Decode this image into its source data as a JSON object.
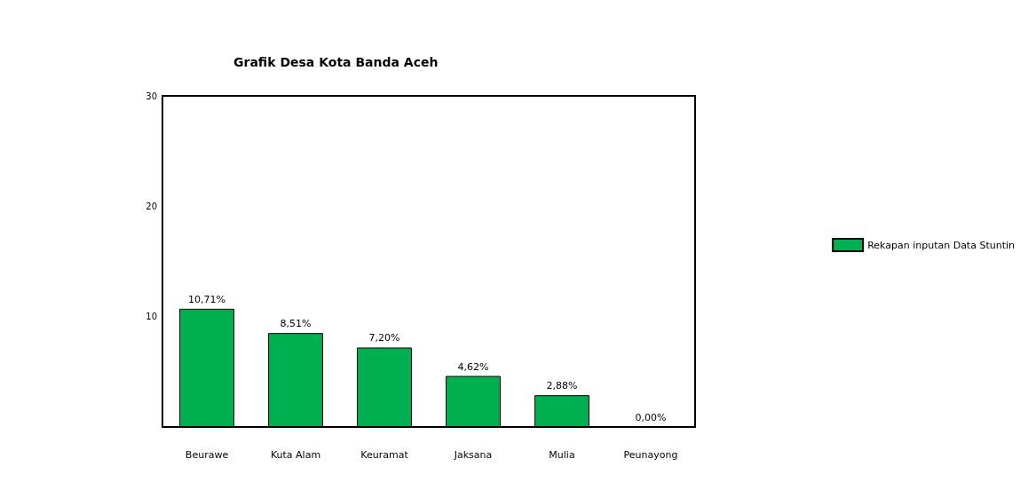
{
  "chart_data": {
    "type": "bar",
    "title": "Grafik Desa Kota Banda Aceh",
    "categories": [
      "Beurawe",
      "Kuta Alam",
      "Keuramat",
      "Jaksana",
      "Mulia",
      "Peunayong"
    ],
    "series": [
      {
        "name": "Rekapan inputan Data Stuntin",
        "color": "#00b050",
        "values": [
          10.71,
          8.51,
          7.2,
          4.62,
          2.88,
          0
        ],
        "value_labels": [
          "10,71%",
          "8,51%",
          "7,20%",
          "4,62%",
          "2,88%",
          "0,00%"
        ]
      }
    ],
    "ylim": [
      0,
      30
    ],
    "yticks": [
      10,
      20,
      30
    ],
    "grid": false,
    "legend": "right"
  }
}
